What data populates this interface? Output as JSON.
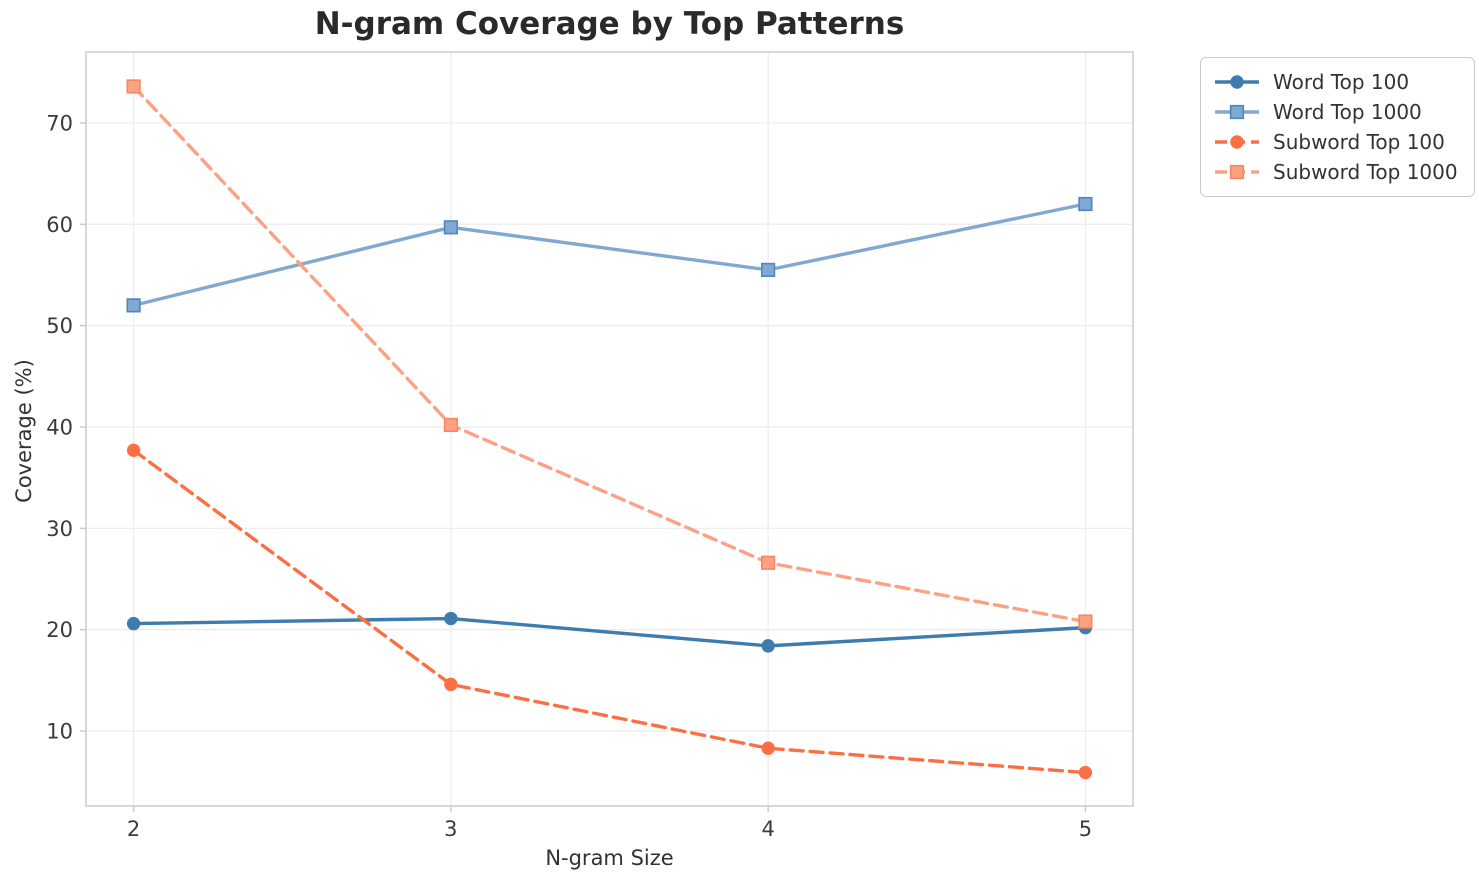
{
  "title": "N-gram Coverage by Top Patterns",
  "chart_data": {
    "type": "line",
    "title": "N-gram Coverage by Top Patterns",
    "xlabel": "N-gram Size",
    "ylabel": "Coverage (%)",
    "x": [
      2,
      3,
      4,
      5
    ],
    "xticks": [
      2,
      3,
      4,
      5
    ],
    "yticks": [
      10,
      20,
      30,
      40,
      50,
      60,
      70
    ],
    "xlim": [
      1.85,
      5.15
    ],
    "ylim": [
      2.6,
      77.0
    ],
    "grid": true,
    "legend_position": "outside-upper-right",
    "series": [
      {
        "name": "Word Top 100",
        "values": [
          20.6,
          21.1,
          18.4,
          20.2
        ],
        "color": "#3E7CB0",
        "marker_edge": "#3E7CB0",
        "line_style": "solid",
        "marker": "circle"
      },
      {
        "name": "Word Top 1000",
        "values": [
          52.0,
          59.7,
          55.5,
          62.0
        ],
        "color": "#7FA9D1",
        "marker_edge": "#4E86BE",
        "line_style": "solid",
        "marker": "square"
      },
      {
        "name": "Subword Top 100",
        "values": [
          37.7,
          14.6,
          8.3,
          5.9
        ],
        "color": "#FA7044",
        "marker_edge": "#FA7044",
        "line_style": "dashed",
        "marker": "circle"
      },
      {
        "name": "Subword Top 1000",
        "values": [
          73.6,
          40.2,
          26.6,
          20.8
        ],
        "color": "#FCA184",
        "marker_edge": "#FA8660",
        "line_style": "dashed",
        "marker": "square"
      }
    ]
  },
  "style": {
    "grid_color": "#ececec",
    "spine_color": "#cfcfcf",
    "tick_color": "#c7c7c7",
    "background": "#ffffff"
  }
}
